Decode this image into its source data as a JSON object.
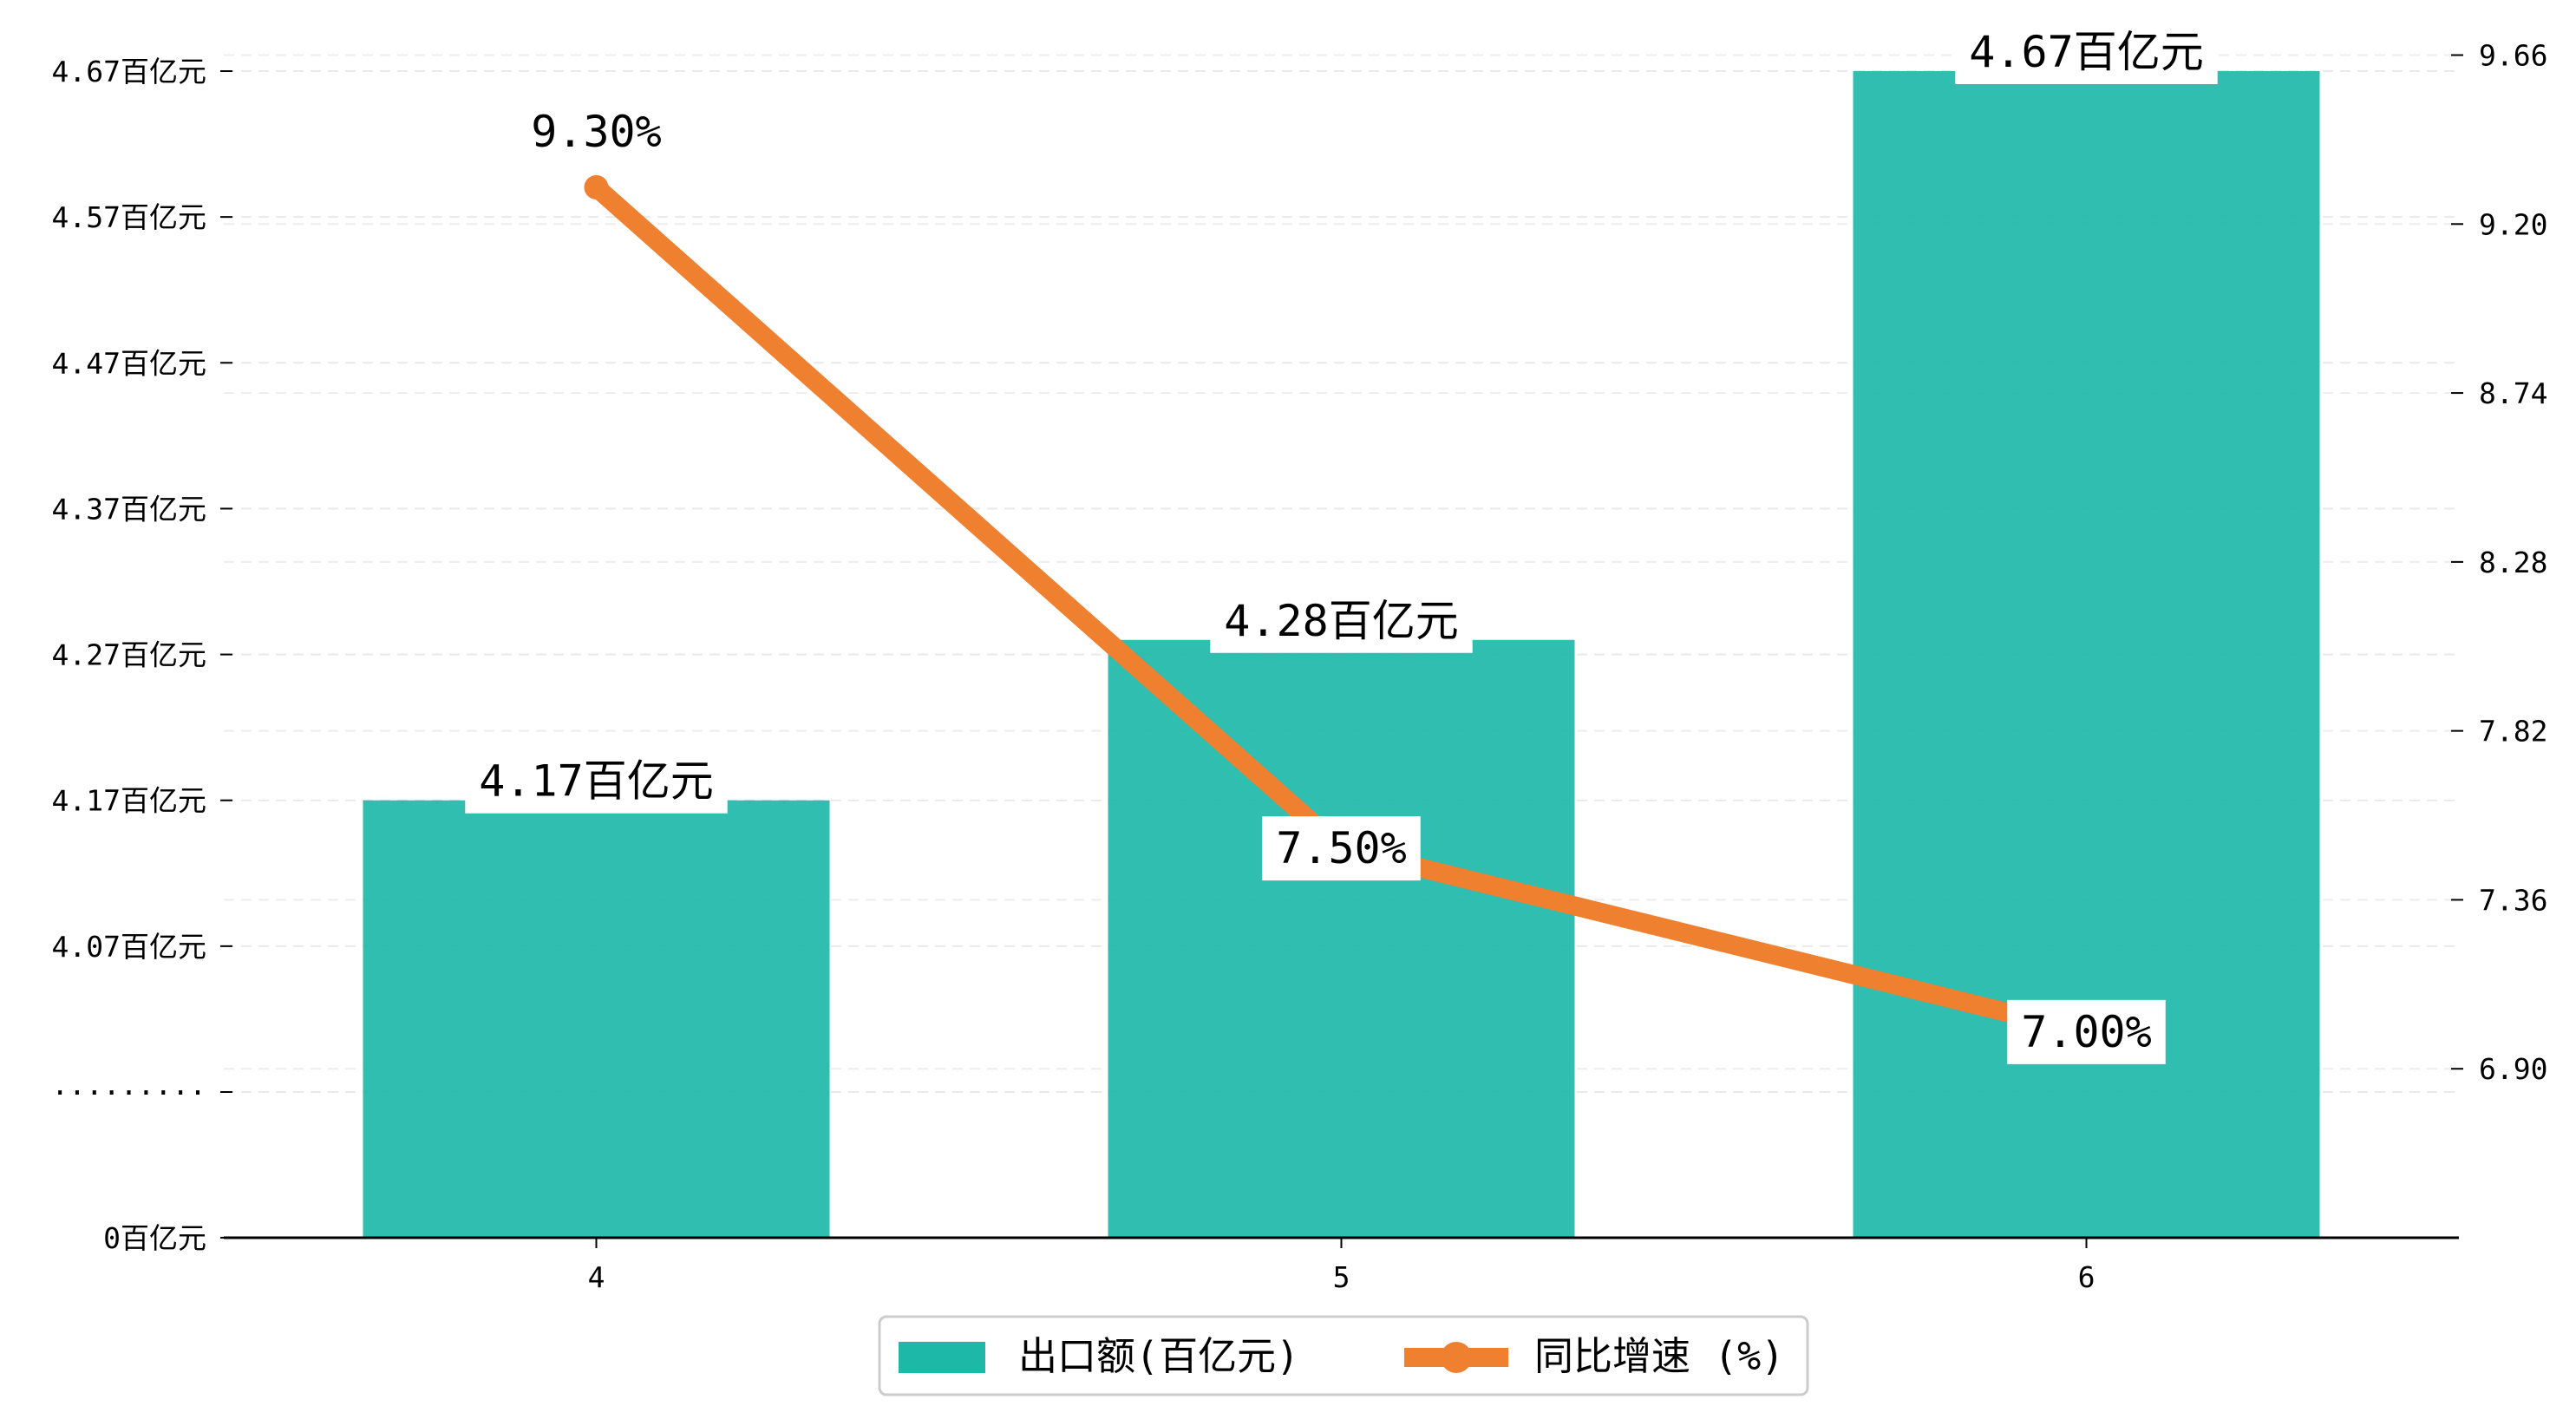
{
  "chart_data": {
    "type": "bar",
    "categories": [
      "4",
      "5",
      "6"
    ],
    "left_axis": {
      "tick_values": [
        0,
        4.07,
        4.17,
        4.27,
        4.37,
        4.47,
        4.57,
        4.67
      ],
      "tick_labels": [
        "0百亿元",
        "·········",
        "4.07百亿元",
        "4.17百亿元",
        "4.27百亿元",
        "4.37百亿元",
        "4.47百亿元",
        "4.57百亿元",
        "4.67百亿元"
      ],
      "break_marker": "·········"
    },
    "right_axis": {
      "tick_values": [
        6.9,
        7.36,
        7.82,
        8.28,
        8.74,
        9.2,
        9.66
      ],
      "tick_labels": [
        "6.90",
        "7.36",
        "7.82",
        "8.28",
        "8.74",
        "9.20",
        "9.66"
      ],
      "ylim": [
        6.44,
        9.81
      ]
    },
    "series": [
      {
        "name": "出口额(百亿元)",
        "type": "bar",
        "axis": "left",
        "color": "#1DB8A8",
        "values": [
          4.17,
          4.28,
          4.67
        ],
        "value_labels": [
          "4.17百亿元",
          "4.28百亿元",
          "4.67百亿元"
        ]
      },
      {
        "name": "同比增速 (%)",
        "type": "line",
        "axis": "right",
        "color": "#EE8030",
        "values": [
          9.3,
          7.5,
          7.0
        ],
        "value_labels": [
          "9.30%",
          "7.50%",
          "7.00%"
        ]
      }
    ],
    "legend": [
      "出口额(百亿元)",
      "同比增速 (%)"
    ],
    "legend_position": "bottom-center",
    "grid": "horizontal dashed",
    "xlabel": "",
    "ylabel": ""
  }
}
